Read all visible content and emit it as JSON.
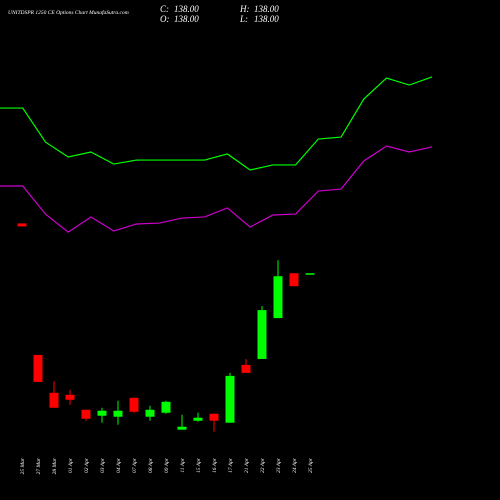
{
  "chart_data": [
    {
      "type": "candlestick",
      "title": "UNITDSPR 1250 CE Options Chart MunafaSutra.com",
      "ohlc_labels": [
        {
          "label": "C:",
          "text": "138.00"
        },
        {
          "label": "H:",
          "text": "138.00"
        },
        {
          "label": "O:",
          "text": "138.00"
        },
        {
          "label": "L:",
          "text": "138.00"
        }
      ],
      "categories": [
        "25 Mar",
        "27 Mar",
        "28 Mar",
        "01 Apr",
        "02 Apr",
        "03 Apr",
        "04 Apr",
        "07 Apr",
        "08 Apr",
        "09 Apr",
        "11 Apr",
        "15 Apr",
        "16 Apr",
        "17 Apr",
        "21 Apr",
        "22 Apr",
        "23 Apr",
        "24 Apr",
        "25 Apr"
      ],
      "open": [
        168,
        88.8,
        66,
        64.8,
        55.8,
        52.2,
        51.6,
        63,
        51.6,
        54,
        43.8,
        49.2,
        53.4,
        48,
        82.8,
        86.4,
        111,
        138,
        138
      ],
      "high": [
        168,
        88.8,
        73,
        67.8,
        55.8,
        57,
        61.2,
        63,
        58.2,
        61.2,
        52.8,
        54,
        53.4,
        78,
        86.4,
        118.2,
        145.8,
        138,
        138
      ],
      "low": [
        166.2,
        72.6,
        57,
        58.8,
        49.2,
        48,
        46.8,
        54,
        49.2,
        53.4,
        43.8,
        48.6,
        42.6,
        48,
        78,
        86.4,
        111,
        130.2,
        138
      ],
      "close": [
        166.2,
        72.6,
        57,
        61.8,
        50.4,
        55.2,
        55.2,
        54.6,
        55.8,
        60.6,
        45.6,
        51,
        49.2,
        76.2,
        78,
        115.8,
        136.2,
        130.2,
        138
      ],
      "up_color": "#00ff00",
      "down_color": "#ff0000",
      "ylim": [
        40,
        152
      ]
    },
    {
      "type": "line",
      "x": [
        0,
        1,
        2,
        3,
        4,
        5,
        6,
        7,
        8,
        9,
        10,
        11,
        12,
        13,
        14,
        15,
        16,
        17,
        18,
        19
      ],
      "xlim": [
        0,
        19
      ],
      "ylim": [
        0,
        100
      ],
      "series": [
        {
          "color": "#00ff00",
          "values": [
            73.3,
            73.3,
            54.4,
            46.1,
            48.9,
            42.2,
            44.4,
            44.4,
            44.4,
            44.4,
            47.8,
            38.9,
            41.7,
            41.7,
            56.1,
            57.2,
            78.3,
            90,
            86.1,
            90.6
          ]
        },
        {
          "color": "#cc00cc",
          "values": [
            30,
            30,
            14.4,
            4.4,
            12.8,
            5,
            8.9,
            9.4,
            12.2,
            12.8,
            17.8,
            7.2,
            13.9,
            14.4,
            27.2,
            28.3,
            43.9,
            52.2,
            48.9,
            51.7
          ]
        }
      ]
    }
  ]
}
